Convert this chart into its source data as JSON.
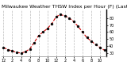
{
  "title": "Milwaukee Weather THSW Index per Hour (F) (Last 24 Hours)",
  "hours": [
    0,
    1,
    2,
    3,
    4,
    5,
    6,
    7,
    8,
    9,
    10,
    11,
    12,
    13,
    14,
    15,
    16,
    17,
    18,
    19,
    20,
    21,
    22,
    23
  ],
  "values": [
    38,
    35,
    33,
    31,
    30,
    32,
    36,
    45,
    55,
    60,
    65,
    72,
    82,
    85,
    83,
    80,
    75,
    68,
    60,
    52,
    47,
    42,
    38,
    34
  ],
  "line_color": "#cc0000",
  "marker_color": "#000000",
  "bg_color": "#ffffff",
  "grid_color": "#bbbbbb",
  "ylim": [
    25,
    92
  ],
  "yticks": [
    30,
    40,
    50,
    60,
    70,
    80
  ],
  "ytick_labels": [
    "30",
    "40",
    "50",
    "60",
    "70",
    "80"
  ],
  "xticks": [
    0,
    2,
    4,
    6,
    8,
    10,
    12,
    14,
    16,
    18,
    20,
    22
  ],
  "xtick_labels": [
    "12",
    "2",
    "4",
    "6",
    "8",
    "10",
    "12",
    "2",
    "4",
    "6",
    "8",
    "10"
  ],
  "title_fontsize": 4.5,
  "tick_fontsize": 3.5,
  "line_width": 0.8,
  "marker_size": 2.0,
  "right_border_color": "#000000"
}
